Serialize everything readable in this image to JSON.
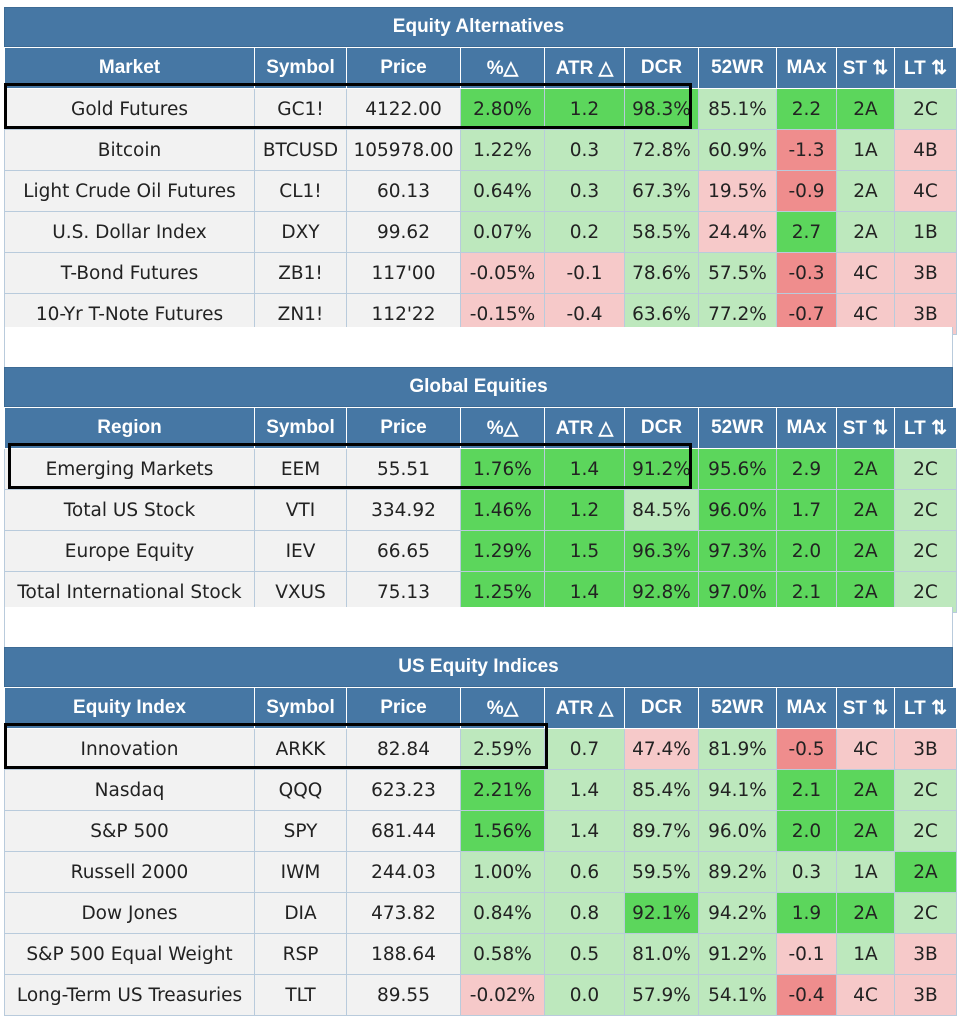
{
  "columns_tail": [
    "Symbol",
    "Price",
    "%△",
    "ATR △",
    "DCR",
    "52WR",
    "MAx",
    "ST ⇅",
    "LT ⇅"
  ],
  "sections": [
    {
      "title": "Equity Alternatives",
      "first_col": "Market",
      "rows": [
        {
          "name": "Gold Futures",
          "symbol": "GC1!",
          "price": "4122.00",
          "pct": "2.80%",
          "atr": "1.2",
          "dcr": "98.3%",
          "wr52": "85.1%",
          "max": "2.2",
          "st": "2A",
          "lt": "2C"
        },
        {
          "name": "Bitcoin",
          "symbol": "BTCUSD",
          "price": "105978.00",
          "pct": "1.22%",
          "atr": "0.3",
          "dcr": "72.8%",
          "wr52": "60.9%",
          "max": "-1.3",
          "st": "1A",
          "lt": "4B"
        },
        {
          "name": "Light Crude Oil Futures",
          "symbol": "CL1!",
          "price": "60.13",
          "pct": "0.64%",
          "atr": "0.3",
          "dcr": "67.3%",
          "wr52": "19.5%",
          "max": "-0.9",
          "st": "2A",
          "lt": "4C"
        },
        {
          "name": "U.S. Dollar Index",
          "symbol": "DXY",
          "price": "99.62",
          "pct": "0.07%",
          "atr": "0.2",
          "dcr": "58.5%",
          "wr52": "24.4%",
          "max": "2.7",
          "st": "2A",
          "lt": "1B"
        },
        {
          "name": "T-Bond Futures",
          "symbol": "ZB1!",
          "price": "117'00",
          "pct": "-0.05%",
          "atr": "-0.1",
          "dcr": "78.6%",
          "wr52": "57.5%",
          "max": "-0.3",
          "st": "4C",
          "lt": "3B"
        },
        {
          "name": "10-Yr T-Note Futures",
          "symbol": "ZN1!",
          "price": "112'22",
          "pct": "-0.15%",
          "atr": "-0.4",
          "dcr": "63.6%",
          "wr52": "77.2%",
          "max": "-0.7",
          "st": "4C",
          "lt": "3B"
        }
      ]
    },
    {
      "title": "Global Equities",
      "first_col": "Region",
      "rows": [
        {
          "name": "Emerging Markets",
          "symbol": "EEM",
          "price": "55.51",
          "pct": "1.76%",
          "atr": "1.4",
          "dcr": "91.2%",
          "wr52": "95.6%",
          "max": "2.9",
          "st": "2A",
          "lt": "2C"
        },
        {
          "name": "Total US Stock",
          "symbol": "VTI",
          "price": "334.92",
          "pct": "1.46%",
          "atr": "1.2",
          "dcr": "84.5%",
          "wr52": "96.0%",
          "max": "1.7",
          "st": "2A",
          "lt": "2C"
        },
        {
          "name": "Europe Equity",
          "symbol": "IEV",
          "price": "66.65",
          "pct": "1.29%",
          "atr": "1.5",
          "dcr": "96.3%",
          "wr52": "97.3%",
          "max": "2.0",
          "st": "2A",
          "lt": "2C"
        },
        {
          "name": "Total International Stock",
          "symbol": "VXUS",
          "price": "75.13",
          "pct": "1.25%",
          "atr": "1.4",
          "dcr": "92.8%",
          "wr52": "97.0%",
          "max": "2.1",
          "st": "2A",
          "lt": "2C"
        }
      ]
    },
    {
      "title": "US Equity Indices",
      "first_col": "Equity Index",
      "rows": [
        {
          "name": "Innovation",
          "symbol": "ARKK",
          "price": "82.84",
          "pct": "2.59%",
          "atr": "0.7",
          "dcr": "47.4%",
          "wr52": "81.9%",
          "max": "-0.5",
          "st": "4C",
          "lt": "3B"
        },
        {
          "name": "Nasdaq",
          "symbol": "QQQ",
          "price": "623.23",
          "pct": "2.21%",
          "atr": "1.4",
          "dcr": "85.4%",
          "wr52": "94.1%",
          "max": "2.1",
          "st": "2A",
          "lt": "2C"
        },
        {
          "name": "S&P 500",
          "symbol": "SPY",
          "price": "681.44",
          "pct": "1.56%",
          "atr": "1.4",
          "dcr": "89.7%",
          "wr52": "96.0%",
          "max": "2.0",
          "st": "2A",
          "lt": "2C"
        },
        {
          "name": "Russell 2000",
          "symbol": "IWM",
          "price": "244.03",
          "pct": "1.00%",
          "atr": "0.6",
          "dcr": "59.5%",
          "wr52": "89.2%",
          "max": "0.3",
          "st": "1A",
          "lt": "2A"
        },
        {
          "name": "Dow Jones",
          "symbol": "DIA",
          "price": "473.82",
          "pct": "0.84%",
          "atr": "0.8",
          "dcr": "92.1%",
          "wr52": "94.2%",
          "max": "1.9",
          "st": "2A",
          "lt": "2C"
        },
        {
          "name": "S&P 500 Equal Weight",
          "symbol": "RSP",
          "price": "188.64",
          "pct": "0.58%",
          "atr": "0.5",
          "dcr": "81.0%",
          "wr52": "91.2%",
          "max": "-0.1",
          "st": "1A",
          "lt": "3B"
        },
        {
          "name": "Long-Term US Treasuries",
          "symbol": "TLT",
          "price": "89.55",
          "pct": "-0.02%",
          "atr": "0.0",
          "dcr": "57.9%",
          "wr52": "54.1%",
          "max": "-0.4",
          "st": "4C",
          "lt": "3B"
        }
      ]
    }
  ],
  "cell_classes": [
    [
      [
        "g2",
        "g2",
        "g2",
        "g1",
        "g2",
        "g2",
        "g1"
      ],
      [
        "g1",
        "g1",
        "g1",
        "g1",
        "n2",
        "g1",
        "n1"
      ],
      [
        "g1",
        "g1",
        "g1",
        "n1",
        "n2",
        "g1",
        "n1"
      ],
      [
        "g1",
        "g1",
        "g1",
        "n1",
        "g2",
        "g1",
        "g1"
      ],
      [
        "n1",
        "n1",
        "g1",
        "g1",
        "n2",
        "n1",
        "n1"
      ],
      [
        "n1",
        "n1",
        "g1",
        "g1",
        "n2",
        "n1",
        "n1"
      ]
    ],
    [
      [
        "g2",
        "g2",
        "g2",
        "g2",
        "g2",
        "g2",
        "g1"
      ],
      [
        "g2",
        "g2",
        "g1",
        "g2",
        "g2",
        "g2",
        "g1"
      ],
      [
        "g2",
        "g2",
        "g2",
        "g2",
        "g2",
        "g2",
        "g1"
      ],
      [
        "g2",
        "g2",
        "g2",
        "g2",
        "g2",
        "g2",
        "g1"
      ]
    ],
    [
      [
        "g1",
        "g1",
        "n1",
        "g1",
        "n2",
        "n1",
        "n1"
      ],
      [
        "g2",
        "g1",
        "g1",
        "g1",
        "g2",
        "g2",
        "g1"
      ],
      [
        "g2",
        "g1",
        "g1",
        "g1",
        "g2",
        "g2",
        "g1"
      ],
      [
        "g1",
        "g1",
        "g1",
        "g1",
        "g1",
        "g1",
        "g2"
      ],
      [
        "g1",
        "g1",
        "g2",
        "g1",
        "g2",
        "g2",
        "g1"
      ],
      [
        "g1",
        "g1",
        "g1",
        "g1",
        "n1",
        "g1",
        "n1"
      ],
      [
        "n1",
        "g1",
        "g1",
        "g1",
        "n2",
        "n1",
        "n1"
      ]
    ]
  ]
}
